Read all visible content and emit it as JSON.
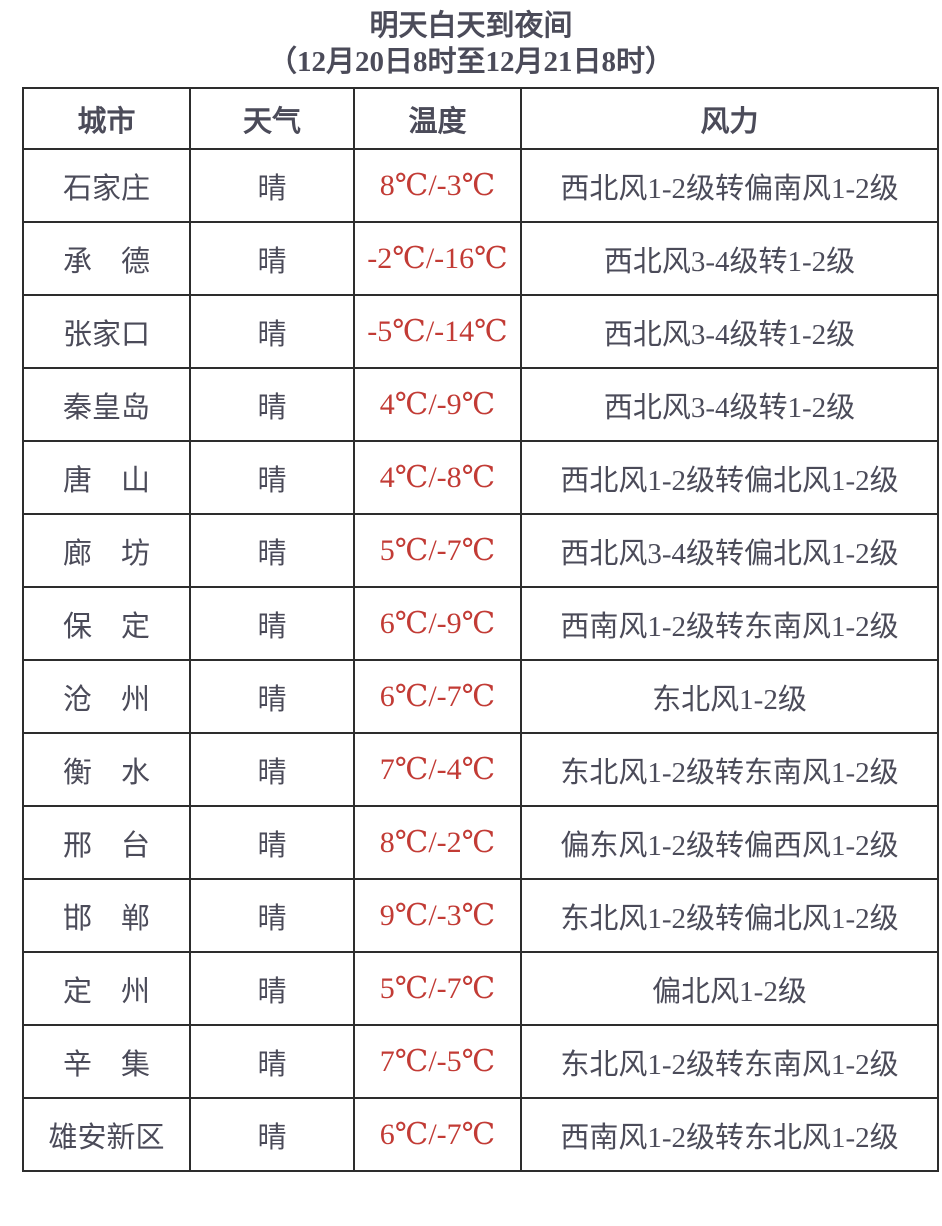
{
  "title": {
    "line1": "明天白天到夜间",
    "line2": "（12月20日8时至12月21日8时）"
  },
  "table": {
    "headers": {
      "city": "城市",
      "weather": "天气",
      "temp": "温度",
      "wind": "风力"
    },
    "rows": [
      {
        "city": "石家庄",
        "weather": "晴",
        "temp": "8℃/-3℃",
        "wind": "西北风1-2级转偏南风1-2级"
      },
      {
        "city": "承　德",
        "weather": "晴",
        "temp": "-2℃/-16℃",
        "wind": "西北风3-4级转1-2级"
      },
      {
        "city": "张家口",
        "weather": "晴",
        "temp": "-5℃/-14℃",
        "wind": "西北风3-4级转1-2级"
      },
      {
        "city": "秦皇岛",
        "weather": "晴",
        "temp": "4℃/-9℃",
        "wind": "西北风3-4级转1-2级"
      },
      {
        "city": "唐　山",
        "weather": "晴",
        "temp": "4℃/-8℃",
        "wind": "西北风1-2级转偏北风1-2级"
      },
      {
        "city": "廊　坊",
        "weather": "晴",
        "temp": "5℃/-7℃",
        "wind": "西北风3-4级转偏北风1-2级"
      },
      {
        "city": "保　定",
        "weather": "晴",
        "temp": "6℃/-9℃",
        "wind": "西南风1-2级转东南风1-2级"
      },
      {
        "city": "沧　州",
        "weather": "晴",
        "temp": "6℃/-7℃",
        "wind": "东北风1-2级"
      },
      {
        "city": "衡　水",
        "weather": "晴",
        "temp": "7℃/-4℃",
        "wind": "东北风1-2级转东南风1-2级"
      },
      {
        "city": "邢　台",
        "weather": "晴",
        "temp": "8℃/-2℃",
        "wind": "偏东风1-2级转偏西风1-2级"
      },
      {
        "city": "邯　郸",
        "weather": "晴",
        "temp": "9℃/-3℃",
        "wind": "东北风1-2级转偏北风1-2级"
      },
      {
        "city": "定　州",
        "weather": "晴",
        "temp": "5℃/-7℃",
        "wind": "偏北风1-2级"
      },
      {
        "city": "辛　集",
        "weather": "晴",
        "temp": "7℃/-5℃",
        "wind": "东北风1-2级转东南风1-2级"
      },
      {
        "city": "雄安新区",
        "weather": "晴",
        "temp": "6℃/-7℃",
        "wind": "西南风1-2级转东北风1-2级"
      }
    ]
  },
  "colors": {
    "text": "#4b4b59",
    "temperature": "#c23b35",
    "border": "#2d2d2d",
    "background": "#ffffff"
  }
}
